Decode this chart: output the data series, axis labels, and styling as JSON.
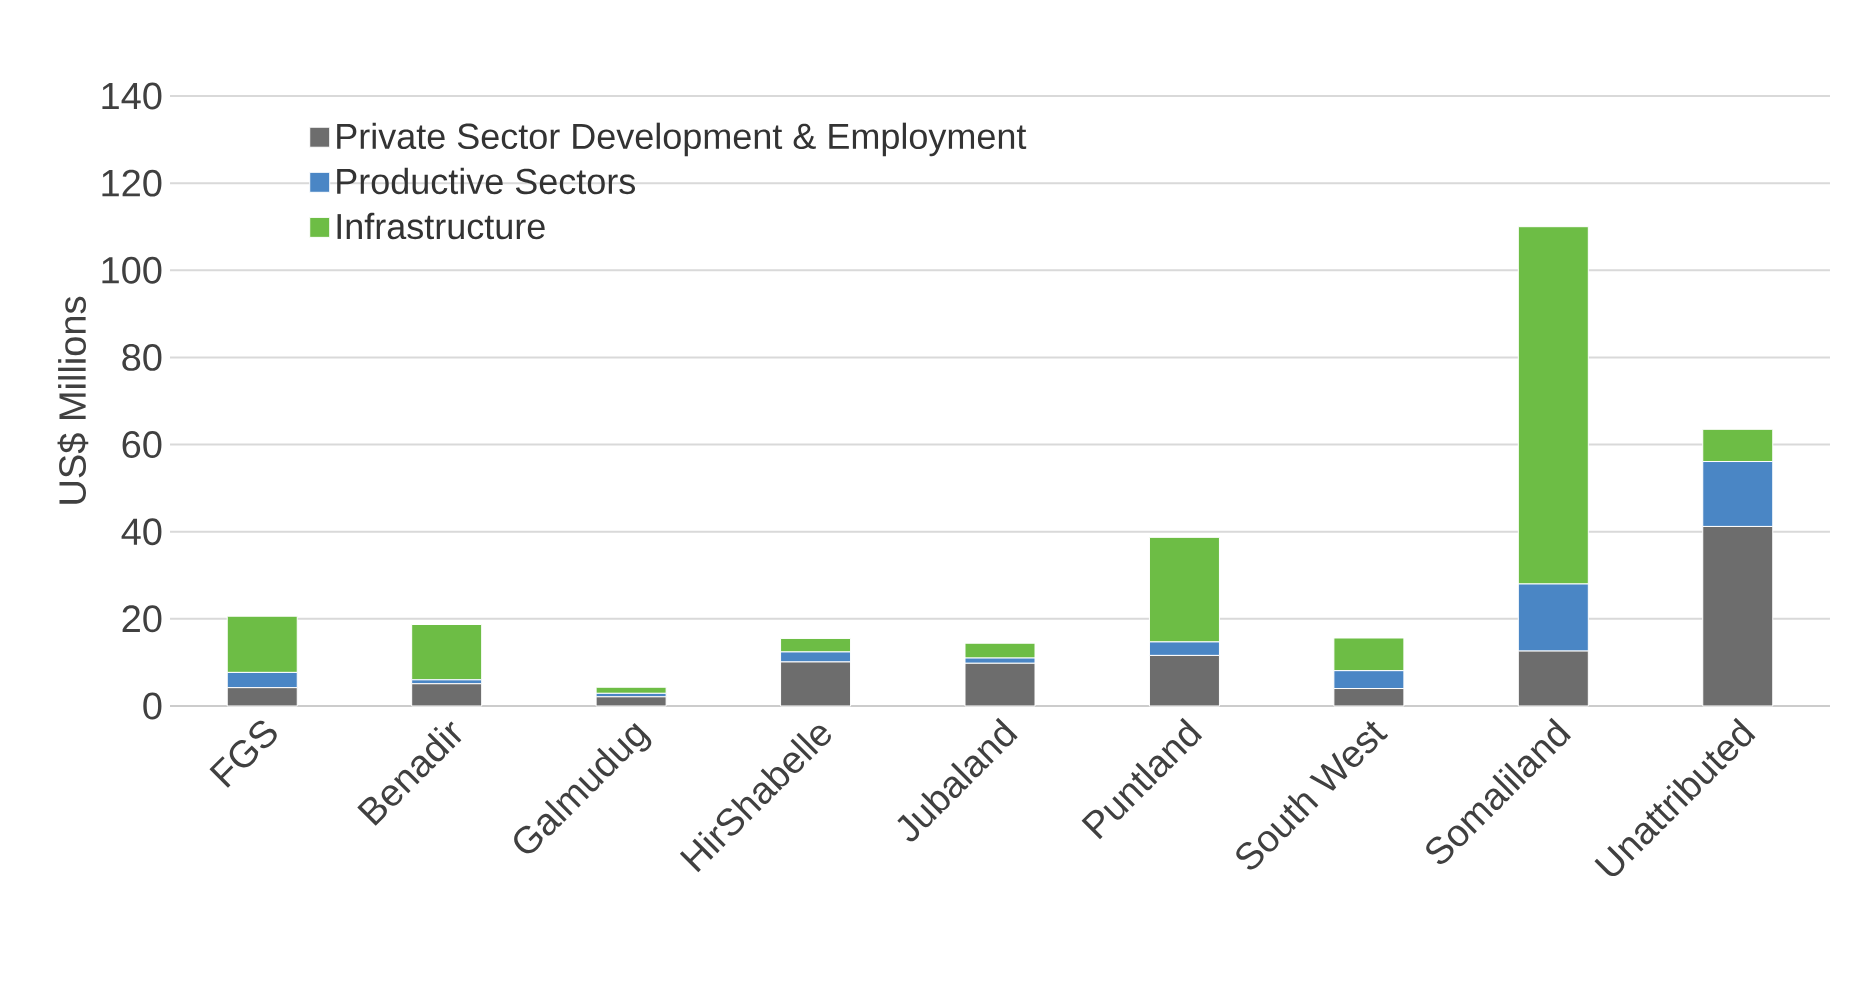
{
  "chart_data": {
    "type": "bar",
    "stacked": true,
    "ylabel": "US$ Millions",
    "categories": [
      "FGS",
      "Benadir",
      "Galmudug",
      "HirShabelle",
      "Jubaland",
      "Puntland",
      "South West",
      "Somaliland",
      "Unattributed"
    ],
    "series": [
      {
        "name": "Private Sector Development & Employment",
        "color": "#6d6d6d",
        "values": [
          4.2,
          5.1,
          2.1,
          10.1,
          9.8,
          11.6,
          4.0,
          12.6,
          41.2
        ]
      },
      {
        "name": "Productive Sectors",
        "color": "#4a86c5",
        "values": [
          3.5,
          0.9,
          0.8,
          2.3,
          1.2,
          3.1,
          4.1,
          15.4,
          14.9
        ]
      },
      {
        "name": "Infrastructure",
        "color": "#6dbd45",
        "values": [
          12.9,
          12.7,
          1.4,
          3.1,
          3.4,
          24.0,
          7.5,
          82.0,
          7.4
        ]
      }
    ],
    "ylim": [
      0,
      140
    ],
    "yticks": [
      0,
      20,
      40,
      60,
      80,
      100,
      120,
      140
    ],
    "grid": "y",
    "legend": "top left"
  }
}
